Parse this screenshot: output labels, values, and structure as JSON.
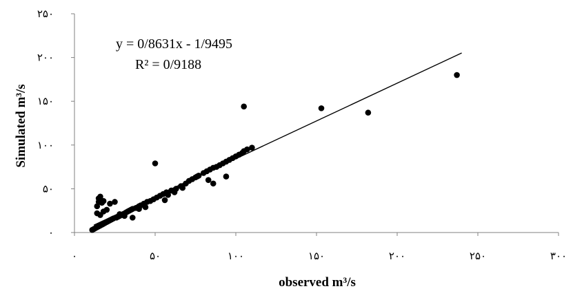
{
  "chart_data": {
    "type": "scatter",
    "title": "",
    "xlabel": "observed m³/s",
    "ylabel": "Simulated m³/s",
    "xlim": [
      0,
      300
    ],
    "ylim": [
      0,
      250
    ],
    "x_ticks": [
      0,
      50,
      100,
      150,
      200,
      250,
      300
    ],
    "y_ticks": [
      0,
      50,
      100,
      150,
      200,
      250
    ],
    "x_tick_labels": [
      "۰",
      "۵۰",
      "۱۰۰",
      "۱۵۰",
      "۲۰۰",
      "۲۵۰",
      "۳۰۰"
    ],
    "y_tick_labels": [
      "۰",
      "۵۰",
      "۱۰۰",
      "۱۵۰",
      "۲۰۰",
      "۲۵۰"
    ],
    "grid": false,
    "legend": "none",
    "marker_color": "#000000",
    "trendline": {
      "slope": 0.8631,
      "intercept": -1.9495,
      "x_range": [
        12,
        240
      ],
      "equation": "y = 0/8631x - 1/9495",
      "r_squared": "R² = 0/9188"
    },
    "series": [
      {
        "points": [
          [
            11,
            3
          ],
          [
            12,
            4
          ],
          [
            13,
            5
          ],
          [
            14,
            6
          ],
          [
            15,
            7
          ],
          [
            16,
            8
          ],
          [
            17,
            9
          ],
          [
            18,
            10
          ],
          [
            19,
            11
          ],
          [
            20,
            12
          ],
          [
            21,
            13
          ],
          [
            22,
            14
          ],
          [
            23,
            15
          ],
          [
            24,
            16
          ],
          [
            26,
            17
          ],
          [
            27,
            18
          ],
          [
            28,
            19
          ],
          [
            30,
            20
          ],
          [
            31,
            21
          ],
          [
            32,
            23
          ],
          [
            33,
            24
          ],
          [
            34,
            25
          ],
          [
            35,
            26
          ],
          [
            36,
            27
          ],
          [
            38,
            28
          ],
          [
            40,
            30
          ],
          [
            41,
            31
          ],
          [
            43,
            33
          ],
          [
            45,
            35
          ],
          [
            47,
            36
          ],
          [
            49,
            38
          ],
          [
            51,
            40
          ],
          [
            53,
            42
          ],
          [
            55,
            44
          ],
          [
            57,
            46
          ],
          [
            60,
            48
          ],
          [
            63,
            50
          ],
          [
            66,
            53
          ],
          [
            69,
            56
          ],
          [
            71,
            59
          ],
          [
            73,
            61
          ],
          [
            75,
            63
          ],
          [
            77,
            65
          ],
          [
            80,
            68
          ],
          [
            82,
            70
          ],
          [
            84,
            72
          ],
          [
            86,
            74
          ],
          [
            88,
            75
          ],
          [
            90,
            77
          ],
          [
            92,
            79
          ],
          [
            94,
            81
          ],
          [
            96,
            83
          ],
          [
            98,
            85
          ],
          [
            100,
            87
          ],
          [
            102,
            89
          ],
          [
            104,
            91
          ],
          [
            105,
            93
          ],
          [
            107,
            95
          ],
          [
            110,
            97
          ],
          [
            14,
            30
          ],
          [
            15,
            35
          ],
          [
            15,
            39
          ],
          [
            16,
            41
          ],
          [
            17,
            34
          ],
          [
            18,
            36
          ],
          [
            20,
            26
          ],
          [
            22,
            33
          ],
          [
            25,
            35
          ],
          [
            14,
            22
          ],
          [
            16,
            20
          ],
          [
            18,
            24
          ],
          [
            28,
            21
          ],
          [
            31,
            19
          ],
          [
            36,
            17
          ],
          [
            40,
            27
          ],
          [
            44,
            29
          ],
          [
            56,
            37
          ],
          [
            58,
            43
          ],
          [
            62,
            46
          ],
          [
            67,
            51
          ],
          [
            76,
            64
          ],
          [
            83,
            60
          ],
          [
            86,
            56
          ],
          [
            94,
            64
          ],
          [
            50,
            79
          ],
          [
            105,
            144
          ],
          [
            153,
            142
          ],
          [
            182,
            137
          ],
          [
            237,
            180
          ]
        ]
      }
    ]
  }
}
